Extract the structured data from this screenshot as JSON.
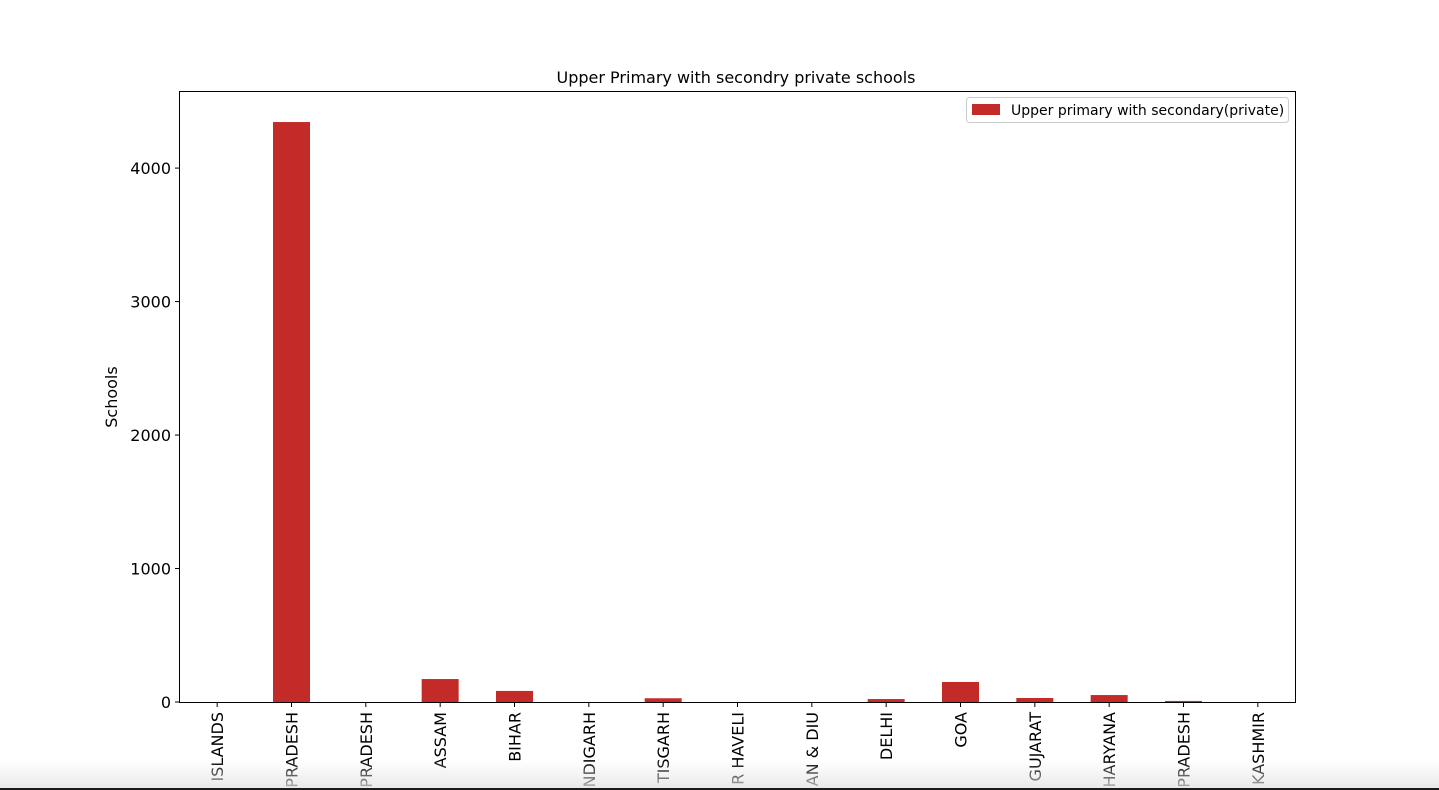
{
  "chart_data": {
    "type": "bar",
    "title": "Upper Primary with secondry private schools",
    "xlabel": "",
    "ylabel": "Schools",
    "categories": [
      "ISLANDS",
      "PRADESH",
      "PRADESH",
      "ASSAM",
      "BIHAR",
      "NDIGARH",
      "TISGARH",
      "R HAVELI",
      "AN & DIU",
      "DELHI",
      "GOA",
      "GUJARAT",
      "HARYANA",
      "PRADESH",
      "KASHMIR"
    ],
    "series": [
      {
        "name": "Upper primary with secondary(private)",
        "color": "#c22b27",
        "values": [
          0,
          4345,
          0,
          172,
          83,
          0,
          28,
          0,
          0,
          22,
          150,
          30,
          52,
          8,
          0
        ]
      }
    ],
    "ylim": [
      0,
      4570
    ],
    "yticks": [
      "0",
      "1000",
      "2000",
      "3000",
      "4000"
    ],
    "grid": false,
    "legend_position": "top-right"
  }
}
